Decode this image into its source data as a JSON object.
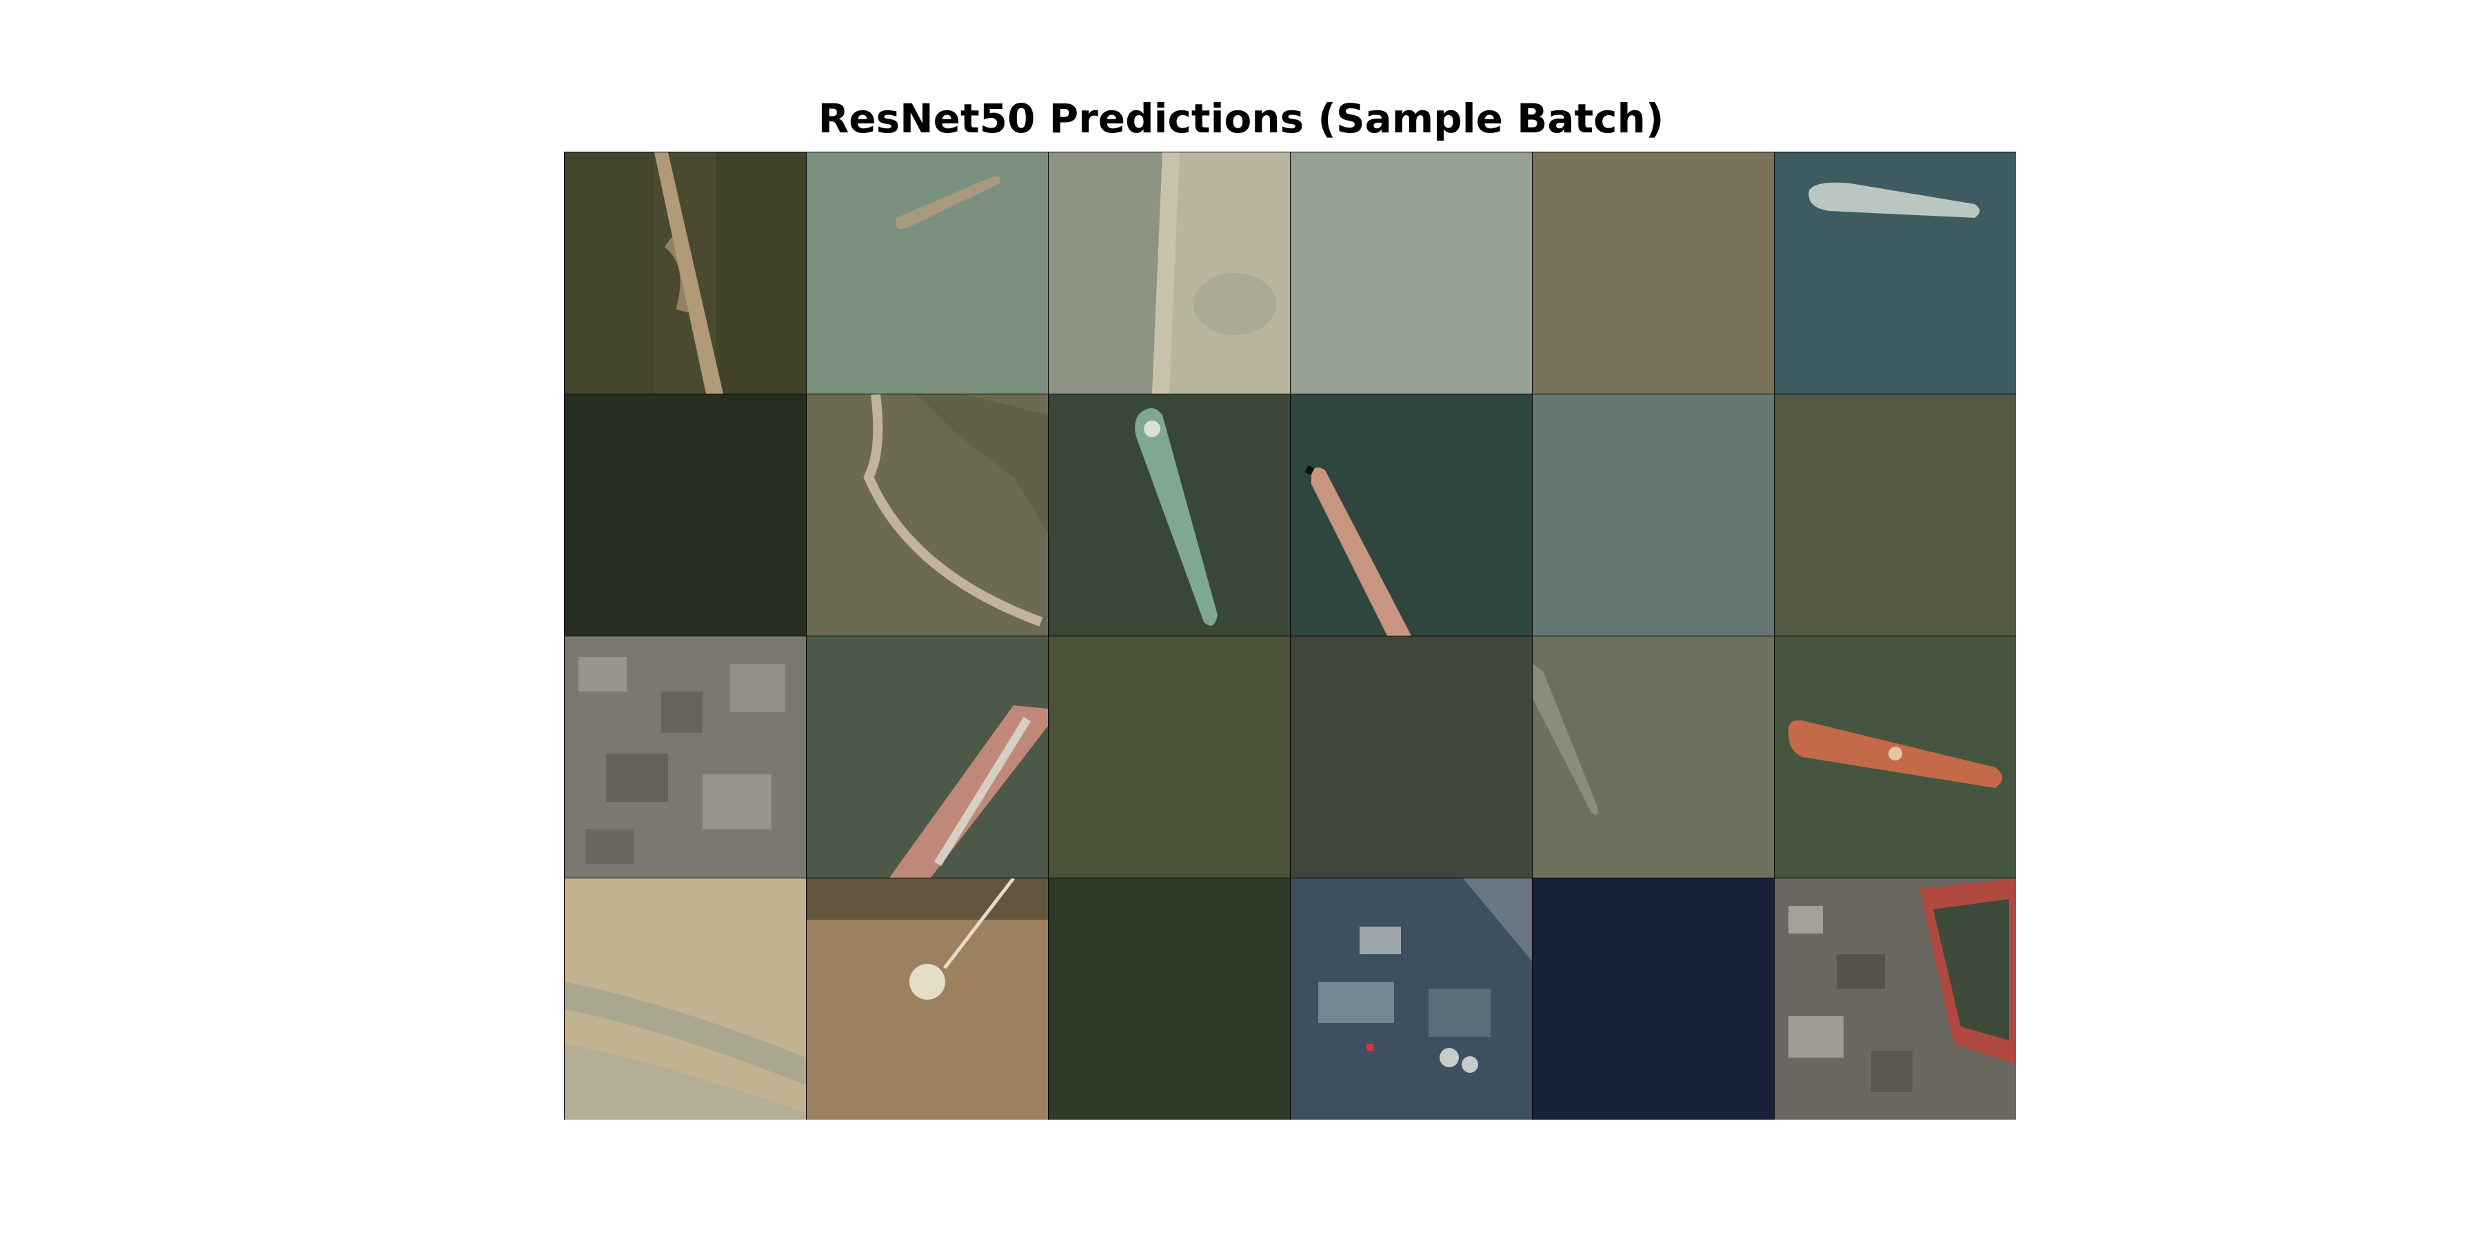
{
  "title": "ResNet50 Predictions (Sample Batch)",
  "grid": {
    "rows": 4,
    "cols": 6
  },
  "tiles": [
    {
      "name": "tile-r1c1-forest-road",
      "scene": "forest-road",
      "color": "#4a4a30",
      "accent": "#b09a78"
    },
    {
      "name": "tile-r1c2-ship",
      "scene": "ship-diagonal",
      "color": "#7b8f7e",
      "accent": "#a89a7e"
    },
    {
      "name": "tile-r1c3-shoreline",
      "scene": "shoreline",
      "color": "#8d9483",
      "accent": "#c9c2aa"
    },
    {
      "name": "tile-r1c4-water",
      "scene": "plain",
      "color": "#96a094",
      "accent": ""
    },
    {
      "name": "tile-r1c5-water",
      "scene": "plain",
      "color": "#7a735a",
      "accent": "#c9c2aa"
    },
    {
      "name": "tile-r1c6-ship",
      "scene": "ship-horizontal",
      "color": "#3f5b62",
      "accent": "#c9d2cc"
    },
    {
      "name": "tile-r2c1-dark-water",
      "scene": "plain",
      "color": "#252e1f",
      "accent": ""
    },
    {
      "name": "tile-r2c2-coastal-road",
      "scene": "coastal-road",
      "color": "#6d6a52",
      "accent": "#c2b49a"
    },
    {
      "name": "tile-r2c3-ship",
      "scene": "ship-vertical",
      "color": "#384736",
      "accent": "#7fa890"
    },
    {
      "name": "tile-r2c4-ship",
      "scene": "ship-tanker",
      "color": "#2f463f",
      "accent": "#c99580"
    },
    {
      "name": "tile-r2c5-water",
      "scene": "plain",
      "color": "#657873",
      "accent": ""
    },
    {
      "name": "tile-r2c6-water",
      "scene": "plain",
      "color": "#545943",
      "accent": ""
    },
    {
      "name": "tile-r3c1-urban",
      "scene": "urban",
      "color": "#7a7870",
      "accent": "#a8a69c"
    },
    {
      "name": "tile-r3c2-ship",
      "scene": "ship-cargo",
      "color": "#4c5848",
      "accent": "#c08878"
    },
    {
      "name": "tile-r3c3-water",
      "scene": "plain",
      "color": "#4a5238",
      "accent": ""
    },
    {
      "name": "tile-r3c4-water",
      "scene": "plain",
      "color": "#40463a",
      "accent": ""
    },
    {
      "name": "tile-r3c5-ship",
      "scene": "ship-small",
      "color": "#6e705e",
      "accent": "#8c8c7c"
    },
    {
      "name": "tile-r3c6-ship",
      "scene": "ship-red",
      "color": "#465540",
      "accent": "#c46a48"
    },
    {
      "name": "tile-r4c1-sand",
      "scene": "sand",
      "color": "#c1b290",
      "accent": "#9aa090"
    },
    {
      "name": "tile-r4c2-dry-land",
      "scene": "dry-land",
      "color": "#9c8060",
      "accent": "#e6ddc8"
    },
    {
      "name": "tile-r4c3-dark-green",
      "scene": "plain",
      "color": "#2e3a24",
      "accent": ""
    },
    {
      "name": "tile-r4c4-port",
      "scene": "port",
      "color": "#3e5060",
      "accent": "#c8ccc8"
    },
    {
      "name": "tile-r4c5-deep-water",
      "scene": "plain",
      "color": "#17223a",
      "accent": ""
    },
    {
      "name": "tile-r4c6-urban-field",
      "scene": "urban-field",
      "color": "#6a6860",
      "accent": "#b04a40"
    }
  ]
}
